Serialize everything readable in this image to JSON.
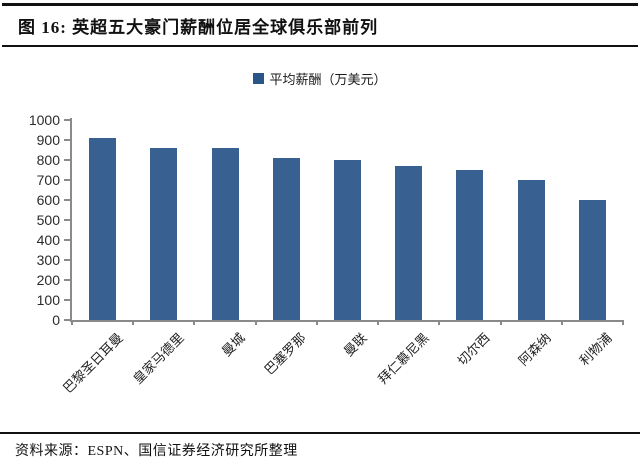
{
  "header": {
    "title": "图 16: 英超五大豪门薪酬位居全球俱乐部前列"
  },
  "chart_data": {
    "type": "bar",
    "title": "",
    "legend": "平均薪酬（万美元）",
    "legend_position": "top-center",
    "categories": [
      "巴黎圣日耳曼",
      "皇家马德里",
      "曼城",
      "巴塞罗那",
      "曼联",
      "拜仁慕尼黑",
      "切尔西",
      "阿森纳",
      "利物浦"
    ],
    "values": [
      910,
      860,
      860,
      810,
      800,
      770,
      750,
      700,
      600
    ],
    "xlabel": "",
    "ylabel": "",
    "ylim": [
      0,
      1000
    ],
    "ytick_step": 100,
    "grid": false,
    "x_labels_rotation_deg": -45
  },
  "colors": {
    "bar": "#386192",
    "legend_swatch": "#2B5487",
    "axis": "#8A8A8A",
    "rule": "#111111"
  },
  "footer": {
    "source": "资料来源：ESPN、国信证券经济研究所整理"
  }
}
